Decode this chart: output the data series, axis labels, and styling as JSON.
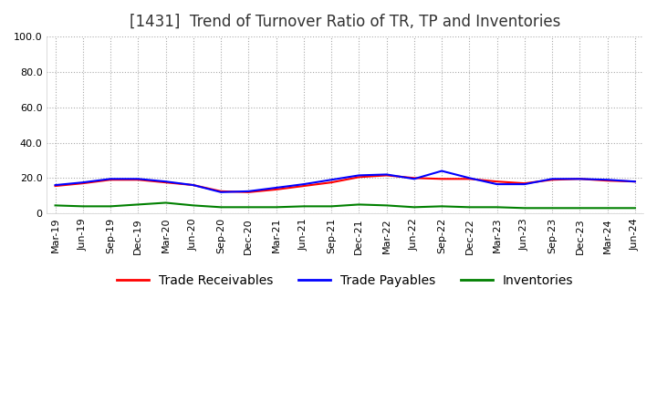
{
  "title": "[1431]  Trend of Turnover Ratio of TR, TP and Inventories",
  "ylim": [
    0,
    100
  ],
  "yticks": [
    0,
    20,
    40,
    60,
    80,
    100
  ],
  "ytick_labels": [
    "0",
    "20.0",
    "40.0",
    "60.0",
    "80.0",
    "100.0"
  ],
  "x_labels": [
    "Mar-19",
    "Jun-19",
    "Sep-19",
    "Dec-19",
    "Mar-20",
    "Jun-20",
    "Sep-20",
    "Dec-20",
    "Mar-21",
    "Jun-21",
    "Sep-21",
    "Dec-21",
    "Mar-22",
    "Jun-22",
    "Sep-22",
    "Dec-22",
    "Mar-23",
    "Jun-23",
    "Sep-23",
    "Dec-23",
    "Mar-24",
    "Jun-24"
  ],
  "trade_receivables": [
    15.5,
    17.0,
    19.0,
    19.0,
    17.5,
    16.0,
    12.5,
    12.0,
    13.5,
    15.5,
    17.5,
    20.5,
    21.5,
    20.0,
    19.5,
    19.5,
    18.0,
    17.0,
    19.0,
    19.5,
    18.5,
    18.0
  ],
  "trade_payables": [
    16.0,
    17.5,
    19.5,
    19.5,
    18.0,
    16.0,
    12.0,
    12.5,
    14.5,
    16.5,
    19.0,
    21.5,
    22.0,
    19.5,
    24.0,
    20.0,
    16.5,
    16.5,
    19.5,
    19.5,
    19.0,
    18.0
  ],
  "inventories": [
    4.5,
    4.0,
    4.0,
    5.0,
    6.0,
    4.5,
    3.5,
    3.5,
    3.5,
    4.0,
    4.0,
    5.0,
    4.5,
    3.5,
    4.0,
    3.5,
    3.5,
    3.0,
    3.0,
    3.0,
    3.0,
    3.0
  ],
  "color_tr": "#ff0000",
  "color_tp": "#0000ff",
  "color_inv": "#008000",
  "background_color": "#ffffff",
  "grid_color": "#aaaaaa",
  "title_fontsize": 12,
  "tick_fontsize": 8,
  "legend_fontsize": 10
}
